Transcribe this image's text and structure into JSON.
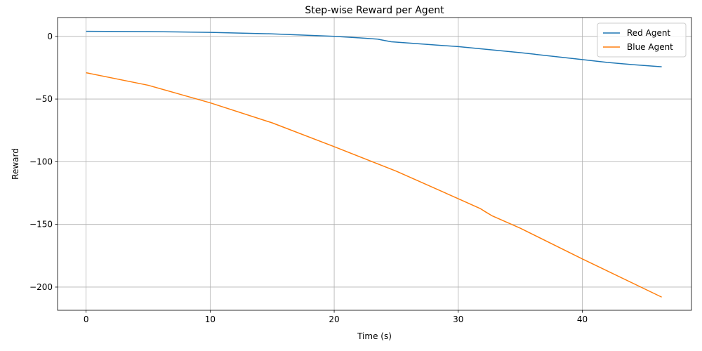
{
  "chart_data": {
    "type": "line",
    "title": "Step-wise Reward per Agent",
    "xlabel": "Time (s)",
    "ylabel": "Reward",
    "xlim": [
      -2.3,
      48.8
    ],
    "ylim": [
      -218.5,
      15
    ],
    "xticks": [
      0,
      10,
      20,
      30,
      40
    ],
    "yticks": [
      0,
      -50,
      -100,
      -150,
      -200
    ],
    "xtick_labels": [
      "0",
      "10",
      "20",
      "30",
      "40"
    ],
    "ytick_labels": [
      "0",
      "−50",
      "−100",
      "−150",
      "−200"
    ],
    "grid": true,
    "legend_position": "top-right",
    "series": [
      {
        "name": "Red Agent",
        "color": "#1f77b4",
        "x": [
          0,
          5,
          10,
          15,
          20,
          22,
          23.5,
          24,
          24.6,
          25,
          30,
          35,
          40,
          42,
          44,
          46.4
        ],
        "y": [
          4,
          3.8,
          3.2,
          2,
          0,
          -1.2,
          -2.2,
          -3.2,
          -4.3,
          -4.6,
          -8.2,
          -13,
          -18.5,
          -20.8,
          -22.5,
          -24.3
        ]
      },
      {
        "name": "Blue Agent",
        "color": "#ff7f0e",
        "x": [
          0,
          5,
          10,
          15,
          20,
          25,
          30,
          31.8,
          32.2,
          32.7,
          35,
          40,
          46.4
        ],
        "y": [
          -29,
          -39,
          -53,
          -69,
          -88,
          -107.5,
          -129.5,
          -137.5,
          -140,
          -143,
          -153,
          -177.5,
          -208
        ]
      }
    ]
  }
}
